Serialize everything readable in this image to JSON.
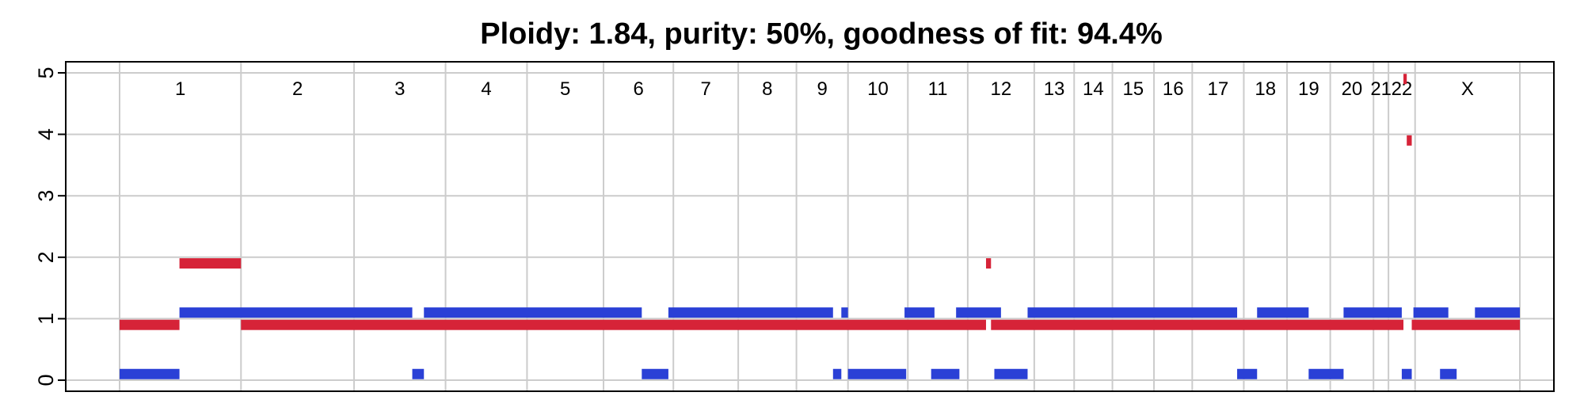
{
  "chart_data": {
    "type": "bar",
    "title": "Ploidy: 1.84, purity: 50%, goodness of fit: 94.4%",
    "xlabel": "",
    "ylabel": "",
    "ylim": [
      0,
      5
    ],
    "y_ticks": [
      0,
      1,
      2,
      3,
      4,
      5
    ],
    "grid": true,
    "colors": {
      "red": "#d62338",
      "blue": "#2a40d6",
      "grid": "#cccccc",
      "axis": "#000000"
    },
    "chromosomes": [
      "1",
      "2",
      "3",
      "4",
      "5",
      "6",
      "7",
      "8",
      "9",
      "10",
      "11",
      "12",
      "13",
      "14",
      "15",
      "16",
      "17",
      "18",
      "19",
      "20",
      "21",
      "22",
      "X"
    ],
    "chromosome_boundaries": [
      0,
      7.3,
      14.1,
      19.6,
      24.5,
      29.1,
      33.3,
      37.2,
      40.7,
      43.8,
      47.4,
      51.0,
      55.0,
      57.4,
      59.7,
      62.2,
      64.5,
      67.6,
      70.2,
      72.8,
      75.4,
      76.3,
      77.9,
      84.2
    ],
    "series": [
      {
        "name": "",
        "color": "red",
        "segments": [
          {
            "start": 0,
            "end": 3.6,
            "cn": 0.9
          },
          {
            "start": 3.6,
            "end": 7.3,
            "cn": 1.9
          },
          {
            "start": 7.3,
            "end": 52.1,
            "cn": 0.9
          },
          {
            "start": 52.1,
            "end": 52.4,
            "cn": 1.9
          },
          {
            "start": 52.4,
            "end": 77.2,
            "cn": 0.9
          },
          {
            "start": 77.2,
            "end": 77.4,
            "cn": 4.9
          },
          {
            "start": 77.4,
            "end": 77.7,
            "cn": 3.9
          },
          {
            "start": 77.7,
            "end": 84.2,
            "cn": 0.9
          }
        ]
      },
      {
        "name": "",
        "color": "blue",
        "segments": [
          {
            "start": 0,
            "end": 3.6,
            "cn": 0.1
          },
          {
            "start": 3.6,
            "end": 17.6,
            "cn": 1.1
          },
          {
            "start": 17.6,
            "end": 18.3,
            "cn": 0.1
          },
          {
            "start": 18.3,
            "end": 31.4,
            "cn": 1.1
          },
          {
            "start": 31.4,
            "end": 33.0,
            "cn": 0.1
          },
          {
            "start": 33.0,
            "end": 42.9,
            "cn": 1.1
          },
          {
            "start": 42.9,
            "end": 43.4,
            "cn": 0.1
          },
          {
            "start": 43.4,
            "end": 43.8,
            "cn": 1.1
          },
          {
            "start": 43.8,
            "end": 47.3,
            "cn": 0.1
          },
          {
            "start": 47.2,
            "end": 49.0,
            "cn": 1.1
          },
          {
            "start": 48.8,
            "end": 50.5,
            "cn": 0.1
          },
          {
            "start": 50.3,
            "end": 53.0,
            "cn": 1.1
          },
          {
            "start": 52.6,
            "end": 54.6,
            "cn": 0.1
          },
          {
            "start": 54.6,
            "end": 67.2,
            "cn": 1.1
          },
          {
            "start": 67.2,
            "end": 68.4,
            "cn": 0.1
          },
          {
            "start": 68.4,
            "end": 71.5,
            "cn": 1.1
          },
          {
            "start": 71.5,
            "end": 73.6,
            "cn": 0.1
          },
          {
            "start": 73.6,
            "end": 77.1,
            "cn": 1.1
          },
          {
            "start": 77.1,
            "end": 77.7,
            "cn": 0.1
          },
          {
            "start": 77.8,
            "end": 79.9,
            "cn": 1.1
          },
          {
            "start": 79.4,
            "end": 80.4,
            "cn": 0.1
          },
          {
            "start": 81.5,
            "end": 84.2,
            "cn": 1.1
          }
        ]
      }
    ]
  }
}
